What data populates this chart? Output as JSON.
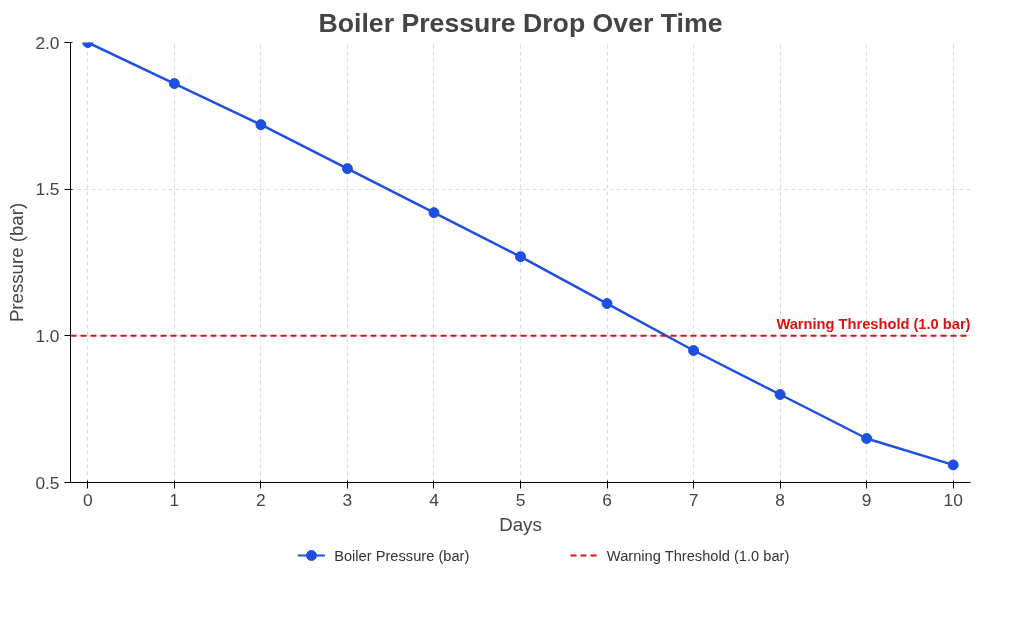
{
  "chart_data": {
    "type": "line",
    "title": "Boiler Pressure Drop Over Time",
    "xlabel": "Days",
    "ylabel": "Pressure (bar)",
    "x": [
      0,
      1,
      2,
      3,
      4,
      5,
      6,
      7,
      8,
      9,
      10
    ],
    "series": [
      {
        "name": "Boiler Pressure (bar)",
        "color": "#1f4fe0",
        "values": [
          2.0,
          1.86,
          1.72,
          1.57,
          1.42,
          1.27,
          1.11,
          0.95,
          0.8,
          0.65,
          0.56
        ]
      }
    ],
    "xlim": [
      -0.2,
      10.2
    ],
    "ylim": [
      0.5,
      2.0
    ],
    "xticks": [
      0,
      1,
      2,
      3,
      4,
      5,
      6,
      7,
      8,
      9,
      10
    ],
    "yticks": [
      {
        "value": 0.5,
        "label": "0.5"
      },
      {
        "value": 1.0,
        "label": "1.0"
      },
      {
        "value": 1.5,
        "label": "1.5"
      },
      {
        "value": 2.0,
        "label": "2.0"
      }
    ],
    "ref_lines": [
      {
        "axis": "y",
        "value": 1.0,
        "label": "Warning Threshold (1.0 bar)",
        "color": "#e01010",
        "line_style": "dashed"
      }
    ],
    "grid": true,
    "legend": "bottom",
    "marker": "circle",
    "line_style": "solid"
  }
}
